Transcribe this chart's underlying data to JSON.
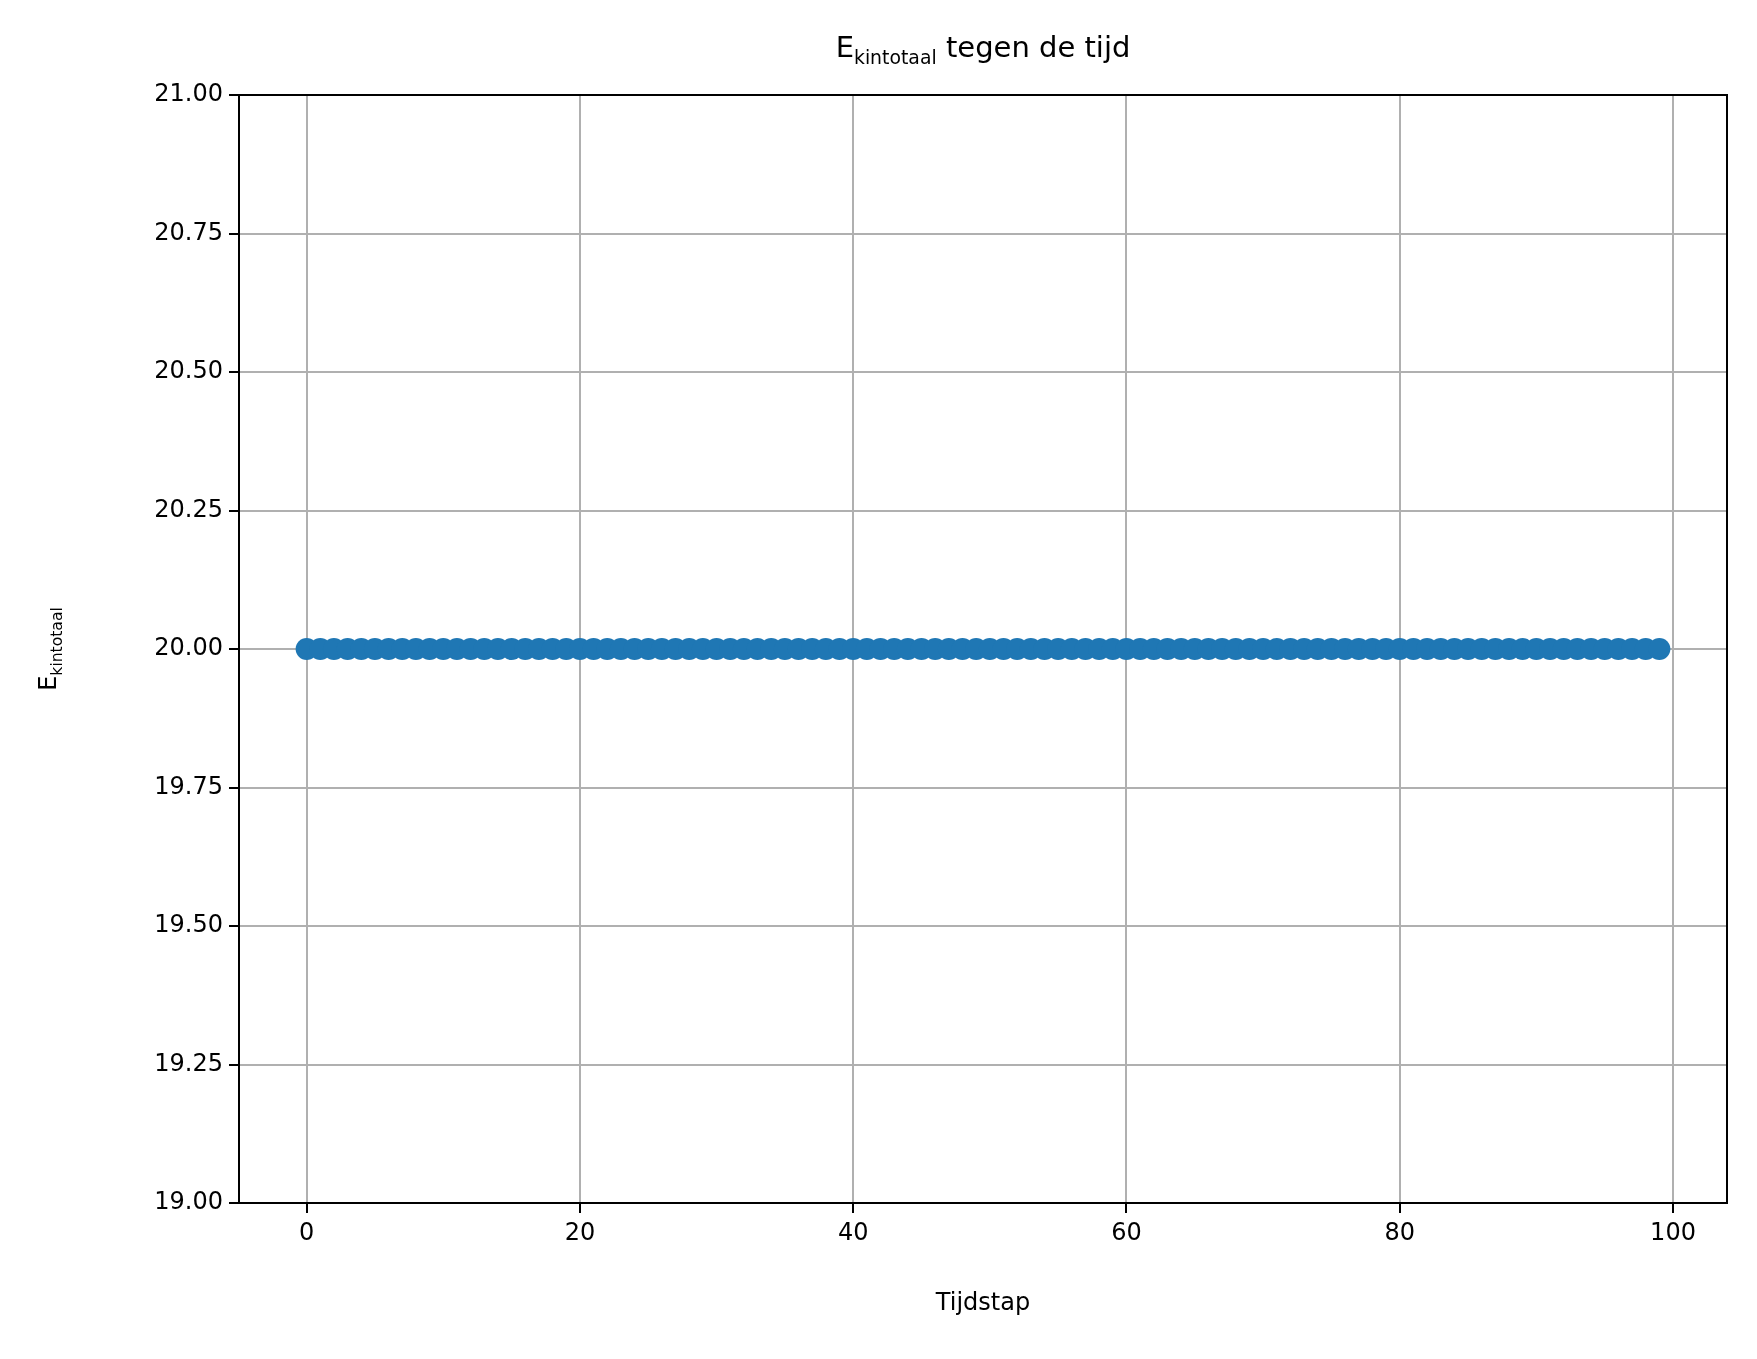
{
  "chart_data": {
    "type": "scatter",
    "title": "E$_{kin}$$_{totaal}$ tegen de tijd",
    "xlabel": "Tijdstap",
    "ylabel": "E$_{kin}$$_{totaal}$",
    "x": [
      0,
      1,
      2,
      3,
      4,
      5,
      6,
      7,
      8,
      9,
      10,
      11,
      12,
      13,
      14,
      15,
      16,
      17,
      18,
      19,
      20,
      21,
      22,
      23,
      24,
      25,
      26,
      27,
      28,
      29,
      30,
      31,
      32,
      33,
      34,
      35,
      36,
      37,
      38,
      39,
      40,
      41,
      42,
      43,
      44,
      45,
      46,
      47,
      48,
      49,
      50,
      51,
      52,
      53,
      54,
      55,
      56,
      57,
      58,
      59,
      60,
      61,
      62,
      63,
      64,
      65,
      66,
      67,
      68,
      69,
      70,
      71,
      72,
      73,
      74,
      75,
      76,
      77,
      78,
      79,
      80,
      81,
      82,
      83,
      84,
      85,
      86,
      87,
      88,
      89,
      90,
      91,
      92,
      93,
      94,
      95,
      96,
      97,
      98,
      99
    ],
    "series": [
      {
        "color": "#1f77b4",
        "values": [
          20,
          20,
          20,
          20,
          20,
          20,
          20,
          20,
          20,
          20,
          20,
          20,
          20,
          20,
          20,
          20,
          20,
          20,
          20,
          20,
          20,
          20,
          20,
          20,
          20,
          20,
          20,
          20,
          20,
          20,
          20,
          20,
          20,
          20,
          20,
          20,
          20,
          20,
          20,
          20,
          20,
          20,
          20,
          20,
          20,
          20,
          20,
          20,
          20,
          20,
          20,
          20,
          20,
          20,
          20,
          20,
          20,
          20,
          20,
          20,
          20,
          20,
          20,
          20,
          20,
          20,
          20,
          20,
          20,
          20,
          20,
          20,
          20,
          20,
          20,
          20,
          20,
          20,
          20,
          20,
          20,
          20,
          20,
          20,
          20,
          20,
          20,
          20,
          20,
          20,
          20,
          20,
          20,
          20,
          20,
          20,
          20,
          20,
          20,
          20
        ]
      }
    ],
    "xlim": [
      -4.95,
      103.95
    ],
    "xticks": [
      0,
      20,
      40,
      60,
      80,
      100
    ],
    "ylim": [
      19,
      21
    ],
    "yticks": [
      {
        "value": 19,
        "label": "19.00"
      },
      {
        "value": 19.25,
        "label": "19.25"
      },
      {
        "value": 19.5,
        "label": "19.50"
      },
      {
        "value": 19.75,
        "label": "19.75"
      },
      {
        "value": 20,
        "label": "20.00"
      },
      {
        "value": 20.25,
        "label": "20.25"
      },
      {
        "value": 20.5,
        "label": "20.50"
      },
      {
        "value": 20.75,
        "label": "20.75"
      },
      {
        "value": 21,
        "label": "21.00"
      }
    ],
    "grid": true,
    "marker": "circle",
    "legend": false
  }
}
